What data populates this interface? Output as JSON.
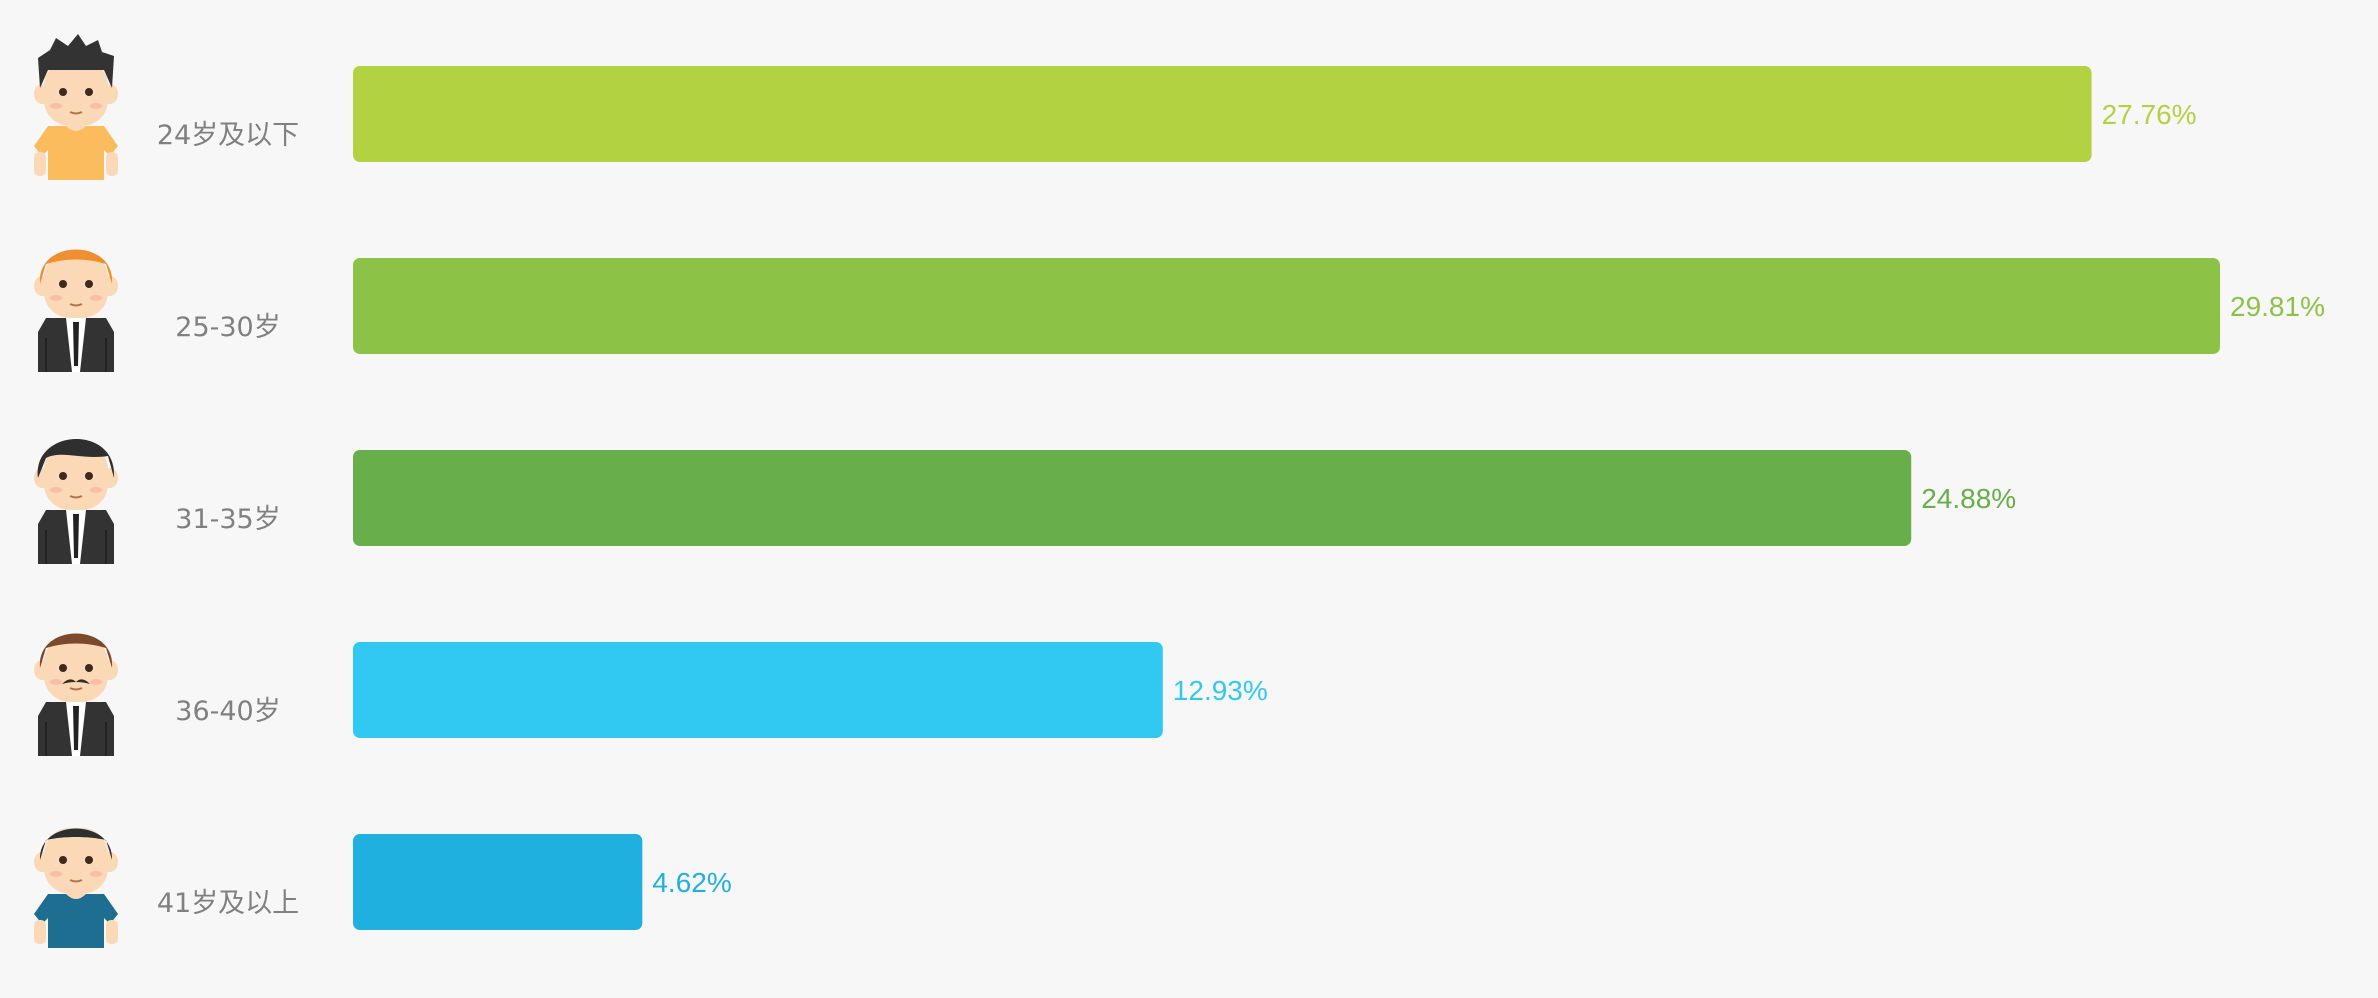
{
  "chart_data": {
    "type": "bar",
    "orientation": "horizontal",
    "categories": [
      "24岁及以下",
      "25-30岁",
      "31-35岁",
      "36-40岁",
      "41岁及以上"
    ],
    "values": [
      27.76,
      29.81,
      24.88,
      12.93,
      4.62
    ],
    "value_labels": [
      "27.76%",
      "29.81%",
      "24.88%",
      "12.93%",
      "4.62%"
    ],
    "colors": [
      "#b3d241",
      "#8cc346",
      "#68ae4b",
      "#31c8f2",
      "#1fb0e0"
    ],
    "icons": [
      "young-man-orange-shirt-icon",
      "man-orange-hair-suit-icon",
      "man-black-hair-suit-icon",
      "man-mustache-suit-icon",
      "man-blue-shirt-icon"
    ],
    "xlim": [
      0,
      29.81
    ],
    "grid": false,
    "title": "",
    "xlabel": "",
    "ylabel": ""
  }
}
